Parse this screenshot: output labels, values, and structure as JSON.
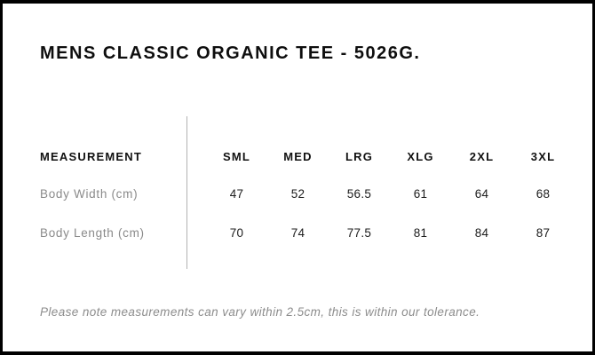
{
  "card": {
    "title": "MENS CLASSIC ORGANIC TEE - 5026G.",
    "note": "Please note measurements can vary within 2.5cm, this is within our tolerance."
  },
  "size_table": {
    "measurement_header": "MEASUREMENT",
    "size_headers": [
      "SML",
      "MED",
      "LRG",
      "XLG",
      "2XL",
      "3XL"
    ],
    "rows": [
      {
        "label": "Body Width (cm)",
        "values": [
          "47",
          "52",
          "56.5",
          "61",
          "64",
          "68"
        ]
      },
      {
        "label": "Body Length (cm)",
        "values": [
          "70",
          "74",
          "77.5",
          "81",
          "84",
          "87"
        ]
      }
    ]
  },
  "colors": {
    "background": "#ffffff",
    "border": "#000000",
    "title_text": "#0e0e0e",
    "header_text": "#111111",
    "row_label_text": "#8a8a8a",
    "value_text": "#1c1c1c",
    "note_text": "#8c8c8c",
    "divider": "#b3b3b3"
  }
}
